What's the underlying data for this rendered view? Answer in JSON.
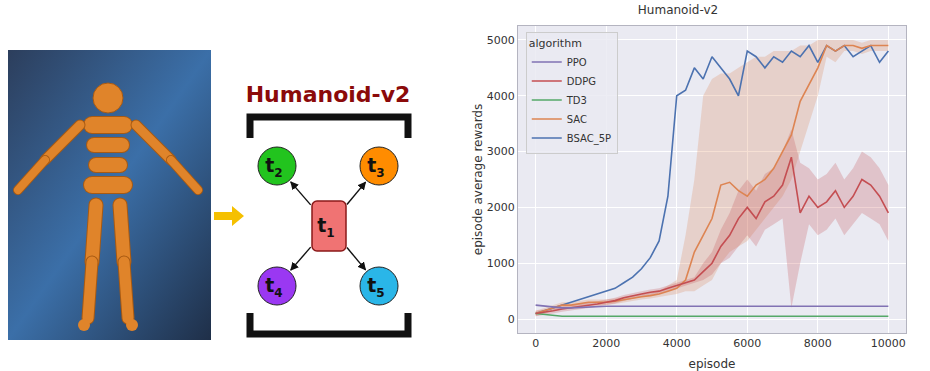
{
  "diagram": {
    "title": "Humanoid-v2",
    "nodes": [
      {
        "text": "t",
        "subscript": "1",
        "color": "#f07373"
      },
      {
        "text": "t",
        "subscript": "2",
        "color": "#22c41e"
      },
      {
        "text": "t",
        "subscript": "3",
        "color": "#ff8c00"
      },
      {
        "text": "t",
        "subscript": "4",
        "color": "#9a38f2"
      },
      {
        "text": "t",
        "subscript": "5",
        "color": "#2ab6e8"
      }
    ],
    "edges": [
      [
        0,
        1
      ],
      [
        0,
        2
      ],
      [
        0,
        3
      ],
      [
        0,
        4
      ]
    ]
  },
  "chart_data": {
    "type": "line",
    "title": "Humanoid-v2",
    "x_label": "episode",
    "y_label": "episode average rewards",
    "legend_title": "algorithm",
    "legend": "upper left",
    "grid": true,
    "x": [
      0,
      250,
      500,
      750,
      1000,
      1250,
      1500,
      1750,
      2000,
      2250,
      2500,
      2750,
      3000,
      3250,
      3500,
      3750,
      4000,
      4250,
      4500,
      4750,
      5000,
      5250,
      5500,
      5750,
      6000,
      6250,
      6500,
      6750,
      7000,
      7250,
      7500,
      7750,
      8000,
      8250,
      8500,
      8750,
      9000,
      9250,
      9500,
      9750,
      10000
    ],
    "xlim": [
      -500,
      10500
    ],
    "xticks": [
      0,
      2000,
      4000,
      6000,
      8000,
      10000
    ],
    "ylim": [
      -250,
      5250
    ],
    "yticks": [
      0,
      1000,
      2000,
      3000,
      4000,
      5000
    ],
    "series": [
      {
        "name": "BSAC_5P",
        "color": "#4c72b0",
        "values": [
          100,
          150,
          200,
          250,
          300,
          350,
          400,
          450,
          500,
          550,
          650,
          750,
          900,
          1100,
          1400,
          2200,
          4000,
          4100,
          4500,
          4300,
          4700,
          4500,
          4300,
          4000,
          4800,
          4700,
          4500,
          4700,
          4600,
          4800,
          4700,
          4900,
          4600,
          4900,
          4800,
          4900,
          4700,
          4800,
          4900,
          4600,
          4800
        ]
      },
      {
        "name": "SAC",
        "color": "#dd8452",
        "values": [
          100,
          150,
          200,
          250,
          250,
          270,
          300,
          300,
          300,
          320,
          350,
          380,
          400,
          420,
          450,
          500,
          550,
          700,
          1200,
          1500,
          1800,
          2400,
          2450,
          2300,
          2200,
          2400,
          2500,
          2700,
          3000,
          3300,
          3900,
          4200,
          4500,
          4900,
          4800,
          4900,
          4900,
          4850,
          4900,
          4900,
          4900
        ],
        "lower": [
          50,
          100,
          150,
          200,
          200,
          220,
          250,
          250,
          250,
          270,
          300,
          330,
          350,
          370,
          400,
          420,
          450,
          500,
          500,
          600,
          700,
          1000,
          1200,
          1300,
          1400,
          1600,
          1800,
          2000,
          2200,
          2500,
          3000,
          3500,
          4000,
          4700,
          4600,
          4800,
          4800,
          4750,
          4800,
          4800,
          4800
        ],
        "upper": [
          150,
          200,
          250,
          300,
          300,
          320,
          350,
          350,
          350,
          370,
          400,
          430,
          450,
          470,
          500,
          600,
          700,
          1500,
          2500,
          4000,
          4300,
          4400,
          4400,
          4500,
          4600,
          4700,
          4700,
          4800,
          4800,
          4800,
          4900,
          4900,
          5000,
          5000,
          5000,
          5000,
          5000,
          4950,
          5000,
          5000,
          5000
        ]
      },
      {
        "name": "TD3",
        "color": "#55a868",
        "values": [
          100,
          80,
          60,
          50,
          50,
          50,
          50,
          50,
          50,
          50,
          50,
          50,
          50,
          50,
          50,
          50,
          50,
          50,
          50,
          50,
          50,
          50,
          50,
          50,
          50,
          50,
          50,
          50,
          50,
          50,
          50,
          50,
          50,
          50,
          50,
          50,
          50,
          50,
          50,
          50,
          50
        ]
      },
      {
        "name": "DDPG",
        "color": "#c44e52",
        "values": [
          100,
          120,
          150,
          180,
          200,
          220,
          250,
          270,
          300,
          330,
          380,
          420,
          450,
          480,
          500,
          550,
          600,
          650,
          700,
          850,
          1000,
          1300,
          1500,
          1800,
          2000,
          1800,
          2100,
          2200,
          2400,
          2900,
          1900,
          2200,
          2000,
          2100,
          2300,
          2000,
          2200,
          2500,
          2400,
          2200,
          1900
        ],
        "lower": [
          50,
          70,
          100,
          130,
          150,
          170,
          200,
          220,
          250,
          280,
          330,
          370,
          400,
          430,
          450,
          500,
          550,
          600,
          650,
          700,
          800,
          1000,
          1100,
          1300,
          1500,
          1300,
          1600,
          1700,
          1800,
          200,
          1000,
          1700,
          1500,
          1600,
          1800,
          1500,
          1700,
          1900,
          1800,
          1700,
          1400
        ],
        "upper": [
          150,
          170,
          200,
          230,
          250,
          270,
          300,
          320,
          350,
          380,
          430,
          470,
          500,
          530,
          550,
          600,
          650,
          700,
          750,
          1000,
          1200,
          1600,
          1900,
          2300,
          2500,
          2300,
          2600,
          2700,
          3000,
          3400,
          2800,
          2700,
          2500,
          2600,
          2800,
          2500,
          2700,
          3000,
          2900,
          2700,
          2400
        ]
      },
      {
        "name": "PPO",
        "color": "#8172b3",
        "values": [
          250,
          230,
          210,
          200,
          200,
          210,
          220,
          230,
          230,
          230,
          230,
          230,
          230,
          230,
          230,
          230,
          230,
          230,
          230,
          230,
          230,
          230,
          230,
          230,
          230,
          230,
          230,
          230,
          230,
          230,
          230,
          230,
          230,
          230,
          230,
          230,
          230,
          230,
          230,
          230,
          230
        ]
      }
    ]
  }
}
